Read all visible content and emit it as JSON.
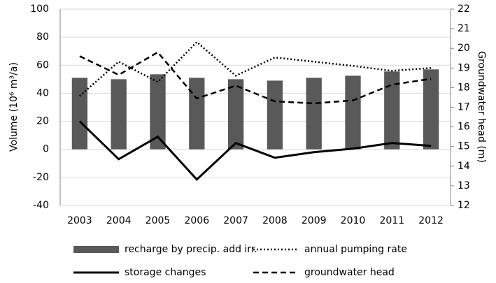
{
  "chart_data": {
    "type": "bar",
    "categories": [
      "2003",
      "2004",
      "2005",
      "2006",
      "2007",
      "2008",
      "2009",
      "2010",
      "2011",
      "2012"
    ],
    "y_label": "Volume (10⁶ m³/a)",
    "y2_label": "Groundwater head (m)",
    "ylim": [
      -40,
      100
    ],
    "yticks": [
      -40,
      -20,
      0,
      20,
      40,
      60,
      80,
      100
    ],
    "y2lim": [
      12,
      22
    ],
    "y2ticks": [
      12,
      13,
      14,
      15,
      16,
      17,
      18,
      19,
      20,
      21,
      22
    ],
    "grid": true,
    "legend": "bottom",
    "series": [
      {
        "name": "recharge by precip. add irr.",
        "type": "bar",
        "color": "#595959",
        "values": [
          51,
          50,
          53.5,
          51,
          50,
          49,
          51,
          52.5,
          55.5,
          57
        ]
      },
      {
        "name": "annual pumping rate",
        "type": "line",
        "style": "dotted",
        "color": "#000000",
        "values": [
          38,
          62.5,
          48,
          76.5,
          52.5,
          65.5,
          62.5,
          59.5,
          56,
          58
        ]
      },
      {
        "name": "storage changes",
        "type": "line",
        "style": "solid",
        "color": "#000000",
        "values": [
          20,
          -7,
          9,
          -21.5,
          4.5,
          -6,
          -2,
          0.5,
          4.5,
          2.5
        ]
      },
      {
        "name": "groundwater head",
        "type": "line",
        "style": "dashed",
        "color": "#000000",
        "axis": "y2",
        "values": [
          19.6,
          18.65,
          19.8,
          17.45,
          18.1,
          17.3,
          17.2,
          17.35,
          18.15,
          18.45
        ]
      }
    ]
  }
}
